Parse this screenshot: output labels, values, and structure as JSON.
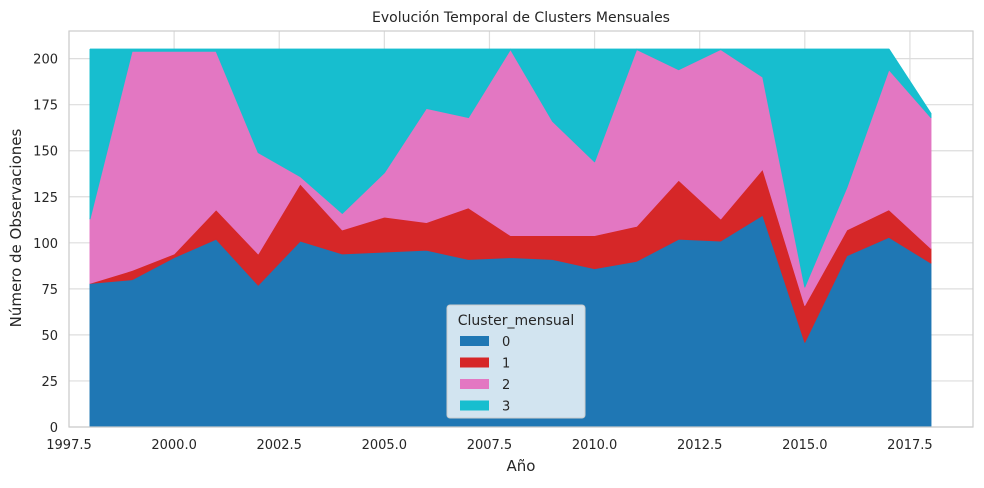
{
  "chart_data": {
    "type": "area",
    "stacked": true,
    "title": "Evolución Temporal de Clusters Mensuales",
    "xlabel": "Año",
    "ylabel": "Número de Observaciones",
    "xlim": [
      1997.5,
      2019.0
    ],
    "ylim": [
      0,
      215
    ],
    "x_ticks": [
      1997.5,
      2000.0,
      2002.5,
      2005.0,
      2007.5,
      2010.0,
      2012.5,
      2015.0,
      2017.5
    ],
    "x_tick_labels": [
      "1997.5",
      "2000.0",
      "2002.5",
      "2005.0",
      "2007.5",
      "2010.0",
      "2012.5",
      "2015.0",
      "2017.5"
    ],
    "y_ticks": [
      0,
      25,
      50,
      75,
      100,
      125,
      150,
      175,
      200
    ],
    "y_tick_labels": [
      "0",
      "25",
      "50",
      "75",
      "100",
      "125",
      "150",
      "175",
      "200"
    ],
    "grid": true,
    "legend": {
      "title": "Cluster_mensual",
      "placement": "bottom-center"
    },
    "x": [
      1998,
      1999,
      2000,
      2001,
      2002,
      2003,
      2004,
      2005,
      2006,
      2007,
      2008,
      2009,
      2010,
      2011,
      2012,
      2013,
      2014,
      2015,
      2016,
      2017,
      2018
    ],
    "series": [
      {
        "name": "0",
        "color": "#1f77b4",
        "values": [
          78,
          80,
          92,
          102,
          77,
          101,
          94,
          95,
          96,
          91,
          92,
          91,
          86,
          90,
          102,
          101,
          115,
          46,
          93,
          103,
          89
        ]
      },
      {
        "name": "1",
        "color": "#d62728",
        "values": [
          0,
          5,
          2,
          16,
          17,
          31,
          13,
          19,
          15,
          28,
          12,
          13,
          18,
          19,
          32,
          12,
          25,
          20,
          14,
          15,
          8
        ]
      },
      {
        "name": "2",
        "color": "#e377c2",
        "values": [
          35,
          119,
          110,
          86,
          55,
          4,
          9,
          24,
          62,
          49,
          101,
          62,
          40,
          96,
          60,
          92,
          50,
          10,
          23,
          76,
          71
        ]
      },
      {
        "name": "3",
        "color": "#17becf",
        "values": [
          92,
          1,
          1,
          1,
          56,
          69,
          89,
          67,
          32,
          37,
          0,
          39,
          61,
          0,
          11,
          0,
          15,
          129,
          75,
          11,
          2
        ]
      }
    ]
  }
}
